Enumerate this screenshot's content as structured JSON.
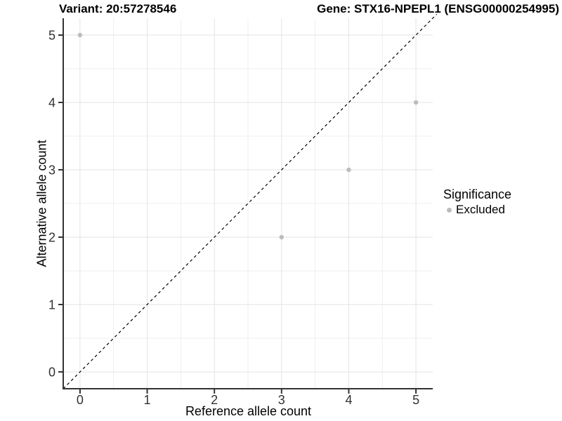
{
  "chart_data": {
    "type": "scatter",
    "title_left": "Variant: 20:57278546",
    "title_right": "Gene: STX16-NPEPL1 (ENSG00000254995)",
    "xlabel": "Reference allele count",
    "ylabel": "Alternative allele count",
    "xlim": [
      -0.25,
      5.25
    ],
    "ylim": [
      -0.25,
      5.25
    ],
    "x_ticks": [
      0,
      1,
      2,
      3,
      4,
      5
    ],
    "y_ticks": [
      0,
      1,
      2,
      3,
      4,
      5
    ],
    "x_minor": [
      0.5,
      1.5,
      2.5,
      3.5,
      4.5
    ],
    "y_minor": [
      0.5,
      1.5,
      2.5,
      3.5,
      4.5
    ],
    "grid": "major+minor",
    "series": [
      {
        "name": "Excluded",
        "color": "#bcbcbc",
        "points": [
          [
            0,
            5
          ],
          [
            3,
            2
          ],
          [
            4,
            3
          ],
          [
            5,
            4
          ]
        ]
      }
    ],
    "reference_line": {
      "type": "identity",
      "equation": "y = x",
      "style": "dashed",
      "color": "#000000"
    },
    "legend": {
      "title": "Significance",
      "position": "right",
      "items": [
        {
          "label": "Excluded",
          "color": "#bcbcbc"
        }
      ]
    },
    "colors": {
      "background": "#ffffff",
      "grid_major": "#e3e3e3",
      "grid_minor": "#efefef",
      "axis": "#333333",
      "tick_label": "#323232",
      "point": "#bcbcbc"
    }
  }
}
